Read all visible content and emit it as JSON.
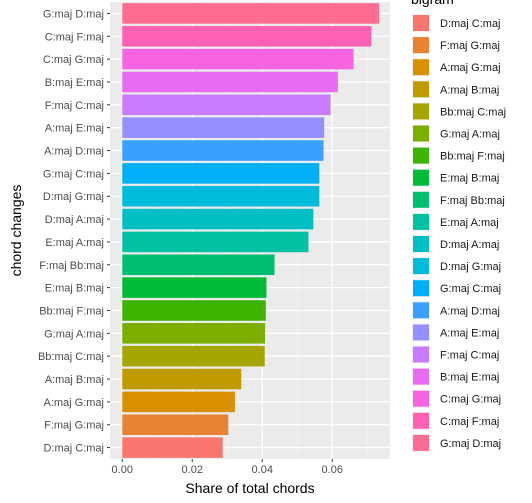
{
  "chart_data": {
    "type": "bar",
    "orientation": "horizontal",
    "title": "",
    "xlabel": "Share of total chords",
    "ylabel": "chord changes",
    "xlim": [
      -0.0035,
      0.0765
    ],
    "xticks": [
      0.0,
      0.02,
      0.04,
      0.06
    ],
    "xtick_labels": [
      "0.00",
      "0.02",
      "0.04",
      "0.06"
    ],
    "grid": true,
    "legend_title": "bigram",
    "legend_position": "right",
    "bars": [
      {
        "category": "G:maj D:maj",
        "value": 0.0734,
        "color": "#FF6C91"
      },
      {
        "category": "C:maj F:maj",
        "value": 0.0712,
        "color": "#FE61B4"
      },
      {
        "category": "C:maj G:maj",
        "value": 0.0661,
        "color": "#F763E0"
      },
      {
        "category": "B:maj E:maj",
        "value": 0.0616,
        "color": "#E76BF3"
      },
      {
        "category": "F:maj C:maj",
        "value": 0.0595,
        "color": "#C77CFF"
      },
      {
        "category": "A:maj E:maj",
        "value": 0.0577,
        "color": "#9590FF"
      },
      {
        "category": "A:maj D:maj",
        "value": 0.0575,
        "color": "#39A0FF"
      },
      {
        "category": "G:maj C:maj",
        "value": 0.0563,
        "color": "#00B0F6"
      },
      {
        "category": "D:maj G:maj",
        "value": 0.0563,
        "color": "#00BBDA"
      },
      {
        "category": "D:maj A:maj",
        "value": 0.0546,
        "color": "#00BFC4"
      },
      {
        "category": "E:maj A:maj",
        "value": 0.0532,
        "color": "#00C1A3"
      },
      {
        "category": "F:maj Bb:maj",
        "value": 0.0435,
        "color": "#00BE6F"
      },
      {
        "category": "E:maj B:maj",
        "value": 0.0412,
        "color": "#00BA38"
      },
      {
        "category": "Bb:maj F:maj",
        "value": 0.041,
        "color": "#3DB400"
      },
      {
        "category": "G:maj A:maj",
        "value": 0.0408,
        "color": "#7CAE00"
      },
      {
        "category": "Bb:maj C:maj",
        "value": 0.0407,
        "color": "#A3A500"
      },
      {
        "category": "A:maj B:maj",
        "value": 0.034,
        "color": "#C09B00"
      },
      {
        "category": "A:maj G:maj",
        "value": 0.0322,
        "color": "#D89000"
      },
      {
        "category": "F:maj G:maj",
        "value": 0.0303,
        "color": "#EA8331"
      },
      {
        "category": "D:maj C:maj",
        "value": 0.0287,
        "color": "#F8766D"
      }
    ],
    "legend": [
      {
        "label": "D:maj C:maj",
        "color": "#F8766D"
      },
      {
        "label": "F:maj G:maj",
        "color": "#EA8331"
      },
      {
        "label": "A:maj G:maj",
        "color": "#D89000"
      },
      {
        "label": "A:maj B:maj",
        "color": "#C09B00"
      },
      {
        "label": "Bb:maj C:maj",
        "color": "#A3A500"
      },
      {
        "label": "G:maj A:maj",
        "color": "#7CAE00"
      },
      {
        "label": "Bb:maj F:maj",
        "color": "#3DB400"
      },
      {
        "label": "E:maj B:maj",
        "color": "#00BA38"
      },
      {
        "label": "F:maj Bb:maj",
        "color": "#00BE6F"
      },
      {
        "label": "E:maj A:maj",
        "color": "#00C1A3"
      },
      {
        "label": "D:maj A:maj",
        "color": "#00BFC4"
      },
      {
        "label": "D:maj G:maj",
        "color": "#00BBDA"
      },
      {
        "label": "G:maj C:maj",
        "color": "#00B0F6"
      },
      {
        "label": "A:maj D:maj",
        "color": "#39A0FF"
      },
      {
        "label": "A:maj E:maj",
        "color": "#9590FF"
      },
      {
        "label": "F:maj C:maj",
        "color": "#C77CFF"
      },
      {
        "label": "B:maj E:maj",
        "color": "#E76BF3"
      },
      {
        "label": "C:maj G:maj",
        "color": "#F763E0"
      },
      {
        "label": "C:maj F:maj",
        "color": "#FE61B4"
      },
      {
        "label": "G:maj D:maj",
        "color": "#FF6C91"
      }
    ],
    "colors": {
      "panel_background": "#EBEBEB",
      "grid_major": "#FFFFFF",
      "grid_minor": "#F5F5F5",
      "axis_text": "#4D4D4D",
      "title_text": "#000000"
    }
  }
}
